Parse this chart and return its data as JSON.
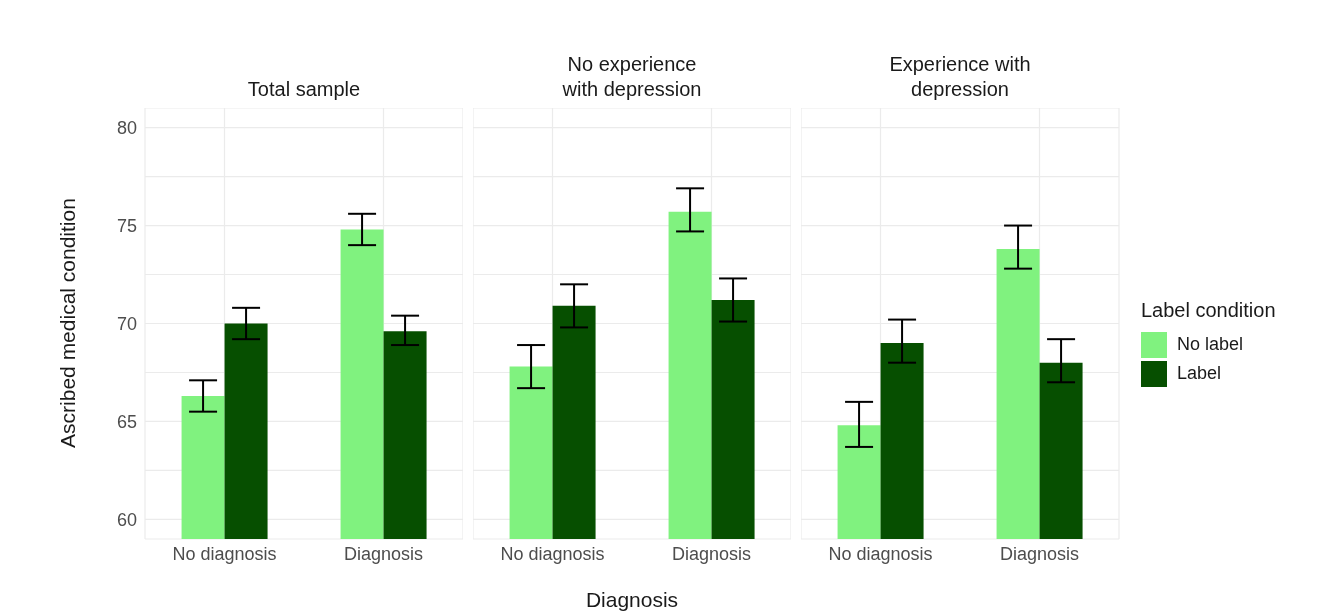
{
  "chart_data": [
    {
      "type": "bar",
      "title": "Total sample",
      "ylabel": "Ascribed medical condition",
      "categories": [
        "No diagnosis",
        "Diagnosis"
      ],
      "ylim": [
        59,
        81
      ],
      "yticks": [
        60,
        {
          "value": 62.5,
          "label": null
        },
        65,
        {
          "value": 67.5,
          "label": null
        },
        70,
        {
          "value": 72.5,
          "label": null
        },
        75,
        {
          "value": 77.5,
          "label": null
        },
        80
      ],
      "grid": true,
      "series": [
        {
          "color": "#80f27f",
          "values": [
            66.3,
            74.8
          ],
          "errors": [
            [
              65.5,
              67.1
            ],
            [
              74.0,
              75.6
            ]
          ]
        },
        {
          "color": "#064f00",
          "values": [
            70.0,
            69.6
          ],
          "errors": [
            [
              69.2,
              70.8
            ],
            [
              68.9,
              70.4
            ]
          ]
        }
      ]
    },
    {
      "type": "bar",
      "title": "No experience with depression",
      "xlabel": "Diagnosis",
      "categories": [
        "No diagnosis",
        "Diagnosis"
      ],
      "ylim": [
        59,
        81
      ],
      "yticks": [
        60,
        {
          "value": 62.5,
          "label": null
        },
        65,
        {
          "value": 67.5,
          "label": null
        },
        70,
        {
          "value": 72.5,
          "label": null
        },
        75,
        {
          "value": 77.5,
          "label": null
        },
        80
      ],
      "grid": true,
      "tick_labels": "x",
      "series": [
        {
          "color": "#80f27f",
          "values": [
            67.8,
            75.7
          ],
          "errors": [
            [
              66.7,
              68.9
            ],
            [
              74.7,
              76.9
            ]
          ]
        },
        {
          "color": "#064f00",
          "values": [
            70.9,
            71.2
          ],
          "errors": [
            [
              69.8,
              72.0
            ],
            [
              70.1,
              72.3
            ]
          ]
        }
      ]
    },
    {
      "type": "bar",
      "title": "Experience with depression",
      "legend_title": "Label condition",
      "legend": "right",
      "categories": [
        "No diagnosis",
        "Diagnosis"
      ],
      "ylim": [
        59,
        81
      ],
      "yticks": [
        60,
        {
          "value": 62.5,
          "label": null
        },
        65,
        {
          "value": 67.5,
          "label": null
        },
        70,
        {
          "value": 72.5,
          "label": null
        },
        75,
        {
          "value": 77.5,
          "label": null
        },
        80
      ],
      "grid": true,
      "tick_labels": "x",
      "series": [
        {
          "name": "No label",
          "color": "#80f27f",
          "values": [
            64.8,
            73.8
          ],
          "errors": [
            [
              63.7,
              66.0
            ],
            [
              72.8,
              75.0
            ]
          ]
        },
        {
          "name": "Label",
          "color": "#064f00",
          "values": [
            69.0,
            68.0
          ],
          "errors": [
            [
              68.0,
              70.2
            ],
            [
              67.0,
              69.2
            ]
          ]
        }
      ]
    }
  ]
}
